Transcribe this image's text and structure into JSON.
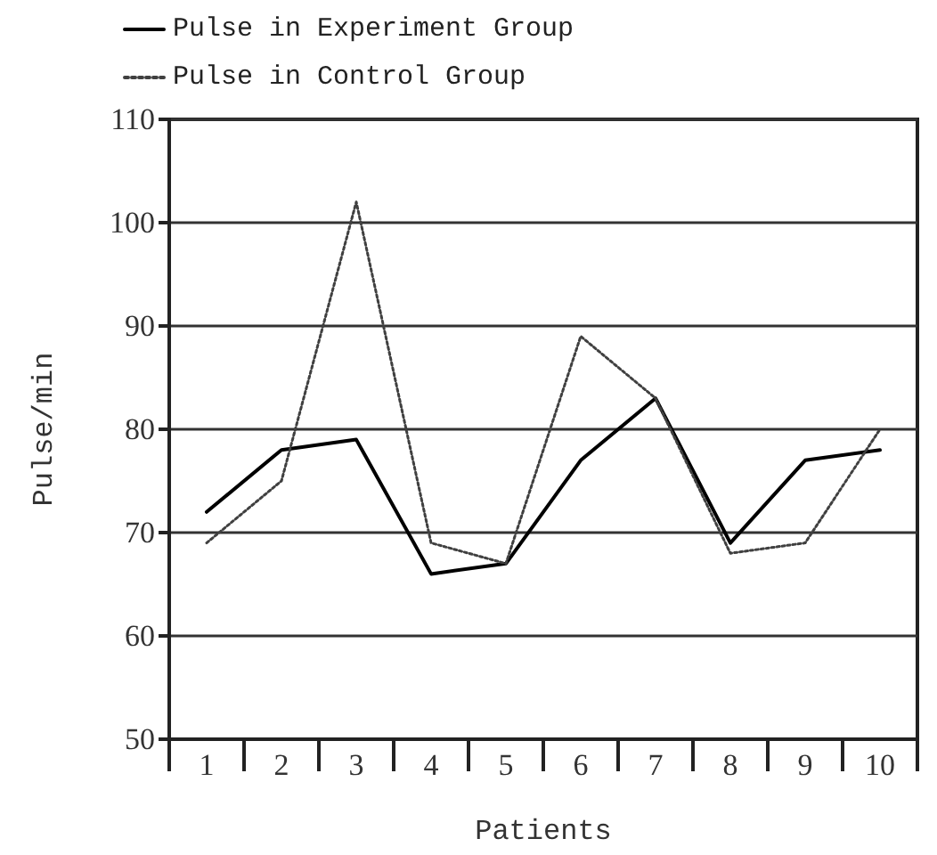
{
  "chart_data": {
    "type": "line",
    "xlabel": "Patients",
    "ylabel": "Pulse/min",
    "categories": [
      "1",
      "2",
      "3",
      "4",
      "5",
      "6",
      "7",
      "8",
      "9",
      "10"
    ],
    "series": [
      {
        "name": "Pulse in Experiment Group",
        "color": "#000000",
        "line_style": "solid",
        "values": [
          72,
          78,
          79,
          66,
          67,
          77,
          83,
          69,
          77,
          78
        ]
      },
      {
        "name": "Pulse in Control Group",
        "color": "#404040",
        "line_style": "dotted",
        "values": [
          69,
          75,
          102,
          69,
          67,
          89,
          83,
          68,
          69,
          80
        ]
      }
    ],
    "ylim": [
      50,
      110
    ],
    "yticks": [
      50,
      60,
      70,
      80,
      90,
      100,
      110
    ],
    "grid": "y",
    "legend": "top left",
    "marker": "none"
  }
}
